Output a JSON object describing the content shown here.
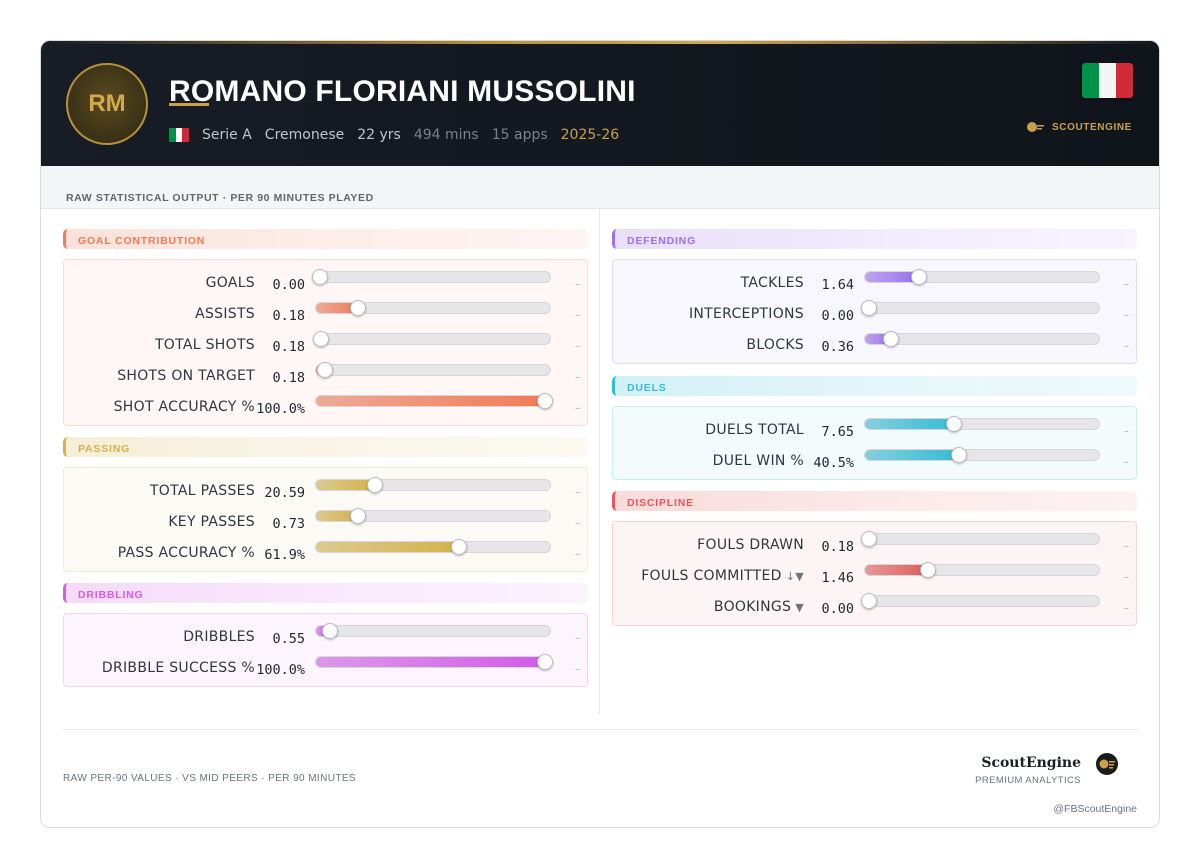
{
  "header": {
    "initials": "RM",
    "player_name": "ROMANO FLORIANI MUSSOLINI",
    "league": "Serie A",
    "club": "Cremonese",
    "age": "22 yrs",
    "minutes": "494 mins",
    "apps": "15 apps",
    "season": "2025-26",
    "brand": "SCOUTENGINE",
    "flag_colors": [
      "#009246",
      "#ffffff",
      "#ce2b37"
    ]
  },
  "subtitle": "RAW STATISTICAL OUTPUT · PER 90 MINUTES PLAYED",
  "sections": {
    "goal": {
      "title": "GOAL CONTRIBUTION",
      "color": "#f27a55",
      "stats": [
        {
          "label": "GOALS",
          "value": "0.00",
          "pct": 0,
          "trend": "–"
        },
        {
          "label": "ASSISTS",
          "value": "0.18",
          "pct": 18,
          "trend": "–"
        },
        {
          "label": "TOTAL SHOTS",
          "value": "0.18",
          "pct": 2,
          "trend": "–"
        },
        {
          "label": "SHOTS ON TARGET",
          "value": "0.18",
          "pct": 4,
          "trend": "–"
        },
        {
          "label": "SHOT ACCURACY %",
          "value": "100.0%",
          "pct": 98,
          "trend": "–"
        }
      ]
    },
    "passing": {
      "title": "PASSING",
      "color": "#d4b24a",
      "stats": [
        {
          "label": "TOTAL PASSES",
          "value": "20.59",
          "pct": 25,
          "trend": "–"
        },
        {
          "label": "KEY PASSES",
          "value": "0.73",
          "pct": 18,
          "trend": "–"
        },
        {
          "label": "PASS ACCURACY %",
          "value": "61.9%",
          "pct": 61,
          "trend": "–"
        }
      ]
    },
    "dribbling": {
      "title": "DRIBBLING",
      "color": "#d35be8",
      "stats": [
        {
          "label": "DRIBBLES",
          "value": "0.55",
          "pct": 6,
          "trend": "–"
        },
        {
          "label": "DRIBBLE SUCCESS %",
          "value": "100.0%",
          "pct": 98,
          "trend": "–"
        }
      ]
    },
    "defending": {
      "title": "DEFENDING",
      "color": "#9a6ff0",
      "stats": [
        {
          "label": "TACKLES",
          "value": "1.64",
          "pct": 23,
          "trend": "–"
        },
        {
          "label": "INTERCEPTIONS",
          "value": "0.00",
          "pct": 0,
          "trend": "–"
        },
        {
          "label": "BLOCKS",
          "value": "0.36",
          "pct": 11,
          "trend": "–"
        }
      ]
    },
    "duels": {
      "title": "DUELS",
      "color": "#35bcd5",
      "stats": [
        {
          "label": "DUELS TOTAL",
          "value": "7.65",
          "pct": 38,
          "trend": "–"
        },
        {
          "label": "DUEL WIN %",
          "value": "40.5%",
          "pct": 40,
          "trend": "–"
        }
      ]
    },
    "discipline": {
      "title": "DISCIPLINE",
      "color": "#e35a5a",
      "stats": [
        {
          "label": "FOULS DRAWN",
          "value": "0.18",
          "pct": 0,
          "trend": "–"
        },
        {
          "label": "FOULS COMMITTED",
          "value": "1.46",
          "pct": 27,
          "trend": "–",
          "arrow": "↓▼"
        },
        {
          "label": "BOOKINGS",
          "value": "0.00",
          "pct": 0,
          "trend": "–",
          "arrow": "▼"
        }
      ]
    }
  },
  "footer": {
    "left": "RAW PER-90 VALUES · VS MID PEERS · PER 90 MINUTES",
    "brand": "ScoutEngine",
    "premium": "PREMIUM ANALYTICS",
    "handle": "@FBScoutEngine"
  }
}
